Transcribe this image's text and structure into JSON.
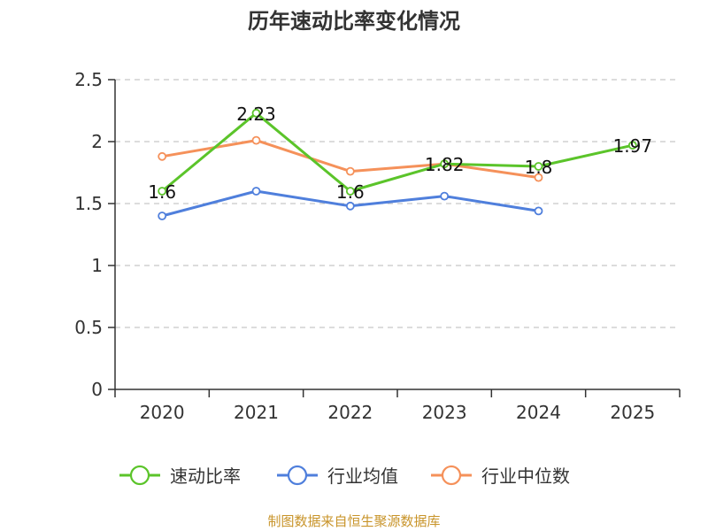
{
  "chart_data": {
    "type": "line",
    "title": "历年速动比率变化情况",
    "categories": [
      "2020",
      "2021",
      "2022",
      "2023",
      "2024",
      "2025"
    ],
    "y_ticks": [
      "0",
      "0.5",
      "1",
      "1.5",
      "2",
      "2.5"
    ],
    "ylim": [
      0,
      2.5
    ],
    "grid": true,
    "legend_position": "bottom",
    "series": [
      {
        "name": "速动比率",
        "color": "#5bc42a",
        "values": [
          1.6,
          2.23,
          1.6,
          1.82,
          1.8,
          1.97
        ],
        "labels": [
          "1.6",
          "2.23",
          "1.6",
          "1.82",
          "1.8",
          "1.97"
        ]
      },
      {
        "name": "行业均值",
        "color": "#4f7fdc",
        "values": [
          1.4,
          1.6,
          1.48,
          1.56,
          1.44,
          null
        ]
      },
      {
        "name": "行业中位数",
        "color": "#f5915a",
        "values": [
          1.88,
          2.01,
          1.76,
          1.82,
          1.71,
          null
        ]
      }
    ]
  },
  "source_text": "制图数据来自恒生聚源数据库"
}
